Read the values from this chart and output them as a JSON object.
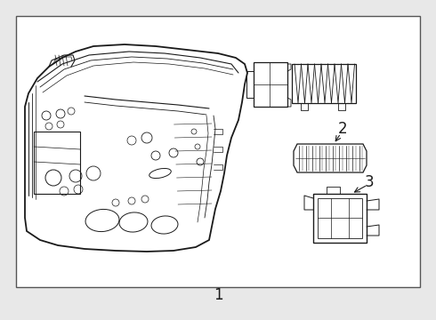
{
  "bg_color": "#e8e8e8",
  "box_bg": "#ffffff",
  "line_color": "#1a1a1a",
  "border_color": "#555555",
  "figsize": [
    4.9,
    3.6
  ],
  "dpi": 100,
  "label1": "1",
  "label2": "2",
  "label3": "3"
}
